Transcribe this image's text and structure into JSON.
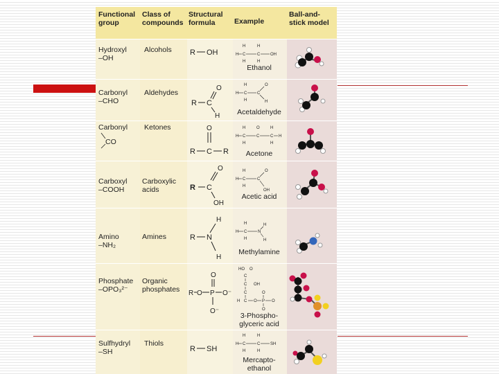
{
  "headers": {
    "functional_group": "Functional\ngroup",
    "class": "Class of\ncompounds",
    "structural": "Structural\nformula",
    "example": "Example",
    "model": "Ball-and-\nstick model"
  },
  "rows": [
    {
      "group": "Hydroxyl\n–OH",
      "class": "Alcohols",
      "example": "Ethanol"
    },
    {
      "group": "Carbonyl\n–CHO",
      "class": "Aldehydes",
      "example": "Acetaldehyde"
    },
    {
      "group": "Carbonyl",
      "group_formula": "CO",
      "class": "Ketones",
      "example": "Acetone"
    },
    {
      "group": "Carboxyl\n–COOH",
      "class": "Carboxylic\nacids",
      "example": "Acetic acid"
    },
    {
      "group": "Amino\n–NH₂",
      "class": "Amines",
      "example": "Methylamine"
    },
    {
      "group": "Phosphate\n–OPO₃²⁻",
      "class": "Organic\nphosphates",
      "example": "3-Phospho-\nglyceric acid"
    },
    {
      "group": "Sulfhydryl\n–SH",
      "class": "Thiols",
      "example": "Mercapto-\nethanol"
    }
  ],
  "formula_labels": {
    "R": "R",
    "OH": "OH",
    "O": "O",
    "C": "C",
    "H": "H",
    "N": "N",
    "P": "P",
    "SH": "SH",
    "O_minus": "O⁻"
  },
  "colors": {
    "slide_line": "#b03030",
    "accent_bar": "#cc1111",
    "header_bg": "#f4e7a0",
    "cell_bg": "#f6f2dc",
    "model_bg": "#e8d8dc",
    "atom_carbon": "#111111",
    "atom_oxygen": "#c8104a",
    "atom_hydrogen": "#ffffff",
    "atom_nitrogen": "#3366bb",
    "atom_phosphorus": "#e0902a",
    "atom_sulfur": "#f2d020"
  }
}
